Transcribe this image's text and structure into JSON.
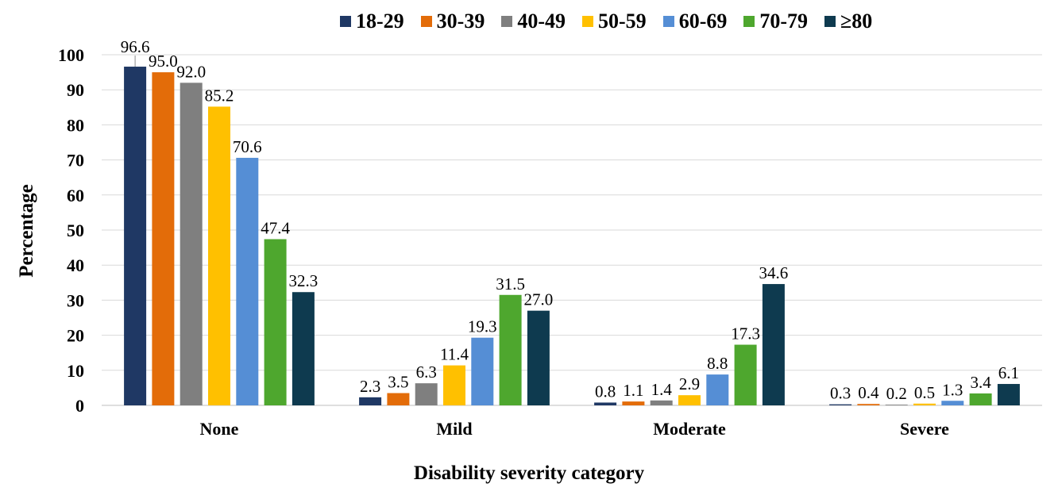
{
  "chart_data": {
    "type": "bar",
    "title": "",
    "xlabel": "Disability severity category",
    "ylabel": "Percentage",
    "ylim": [
      0,
      100
    ],
    "yticks": [
      "0",
      "10",
      "20",
      "30",
      "40",
      "50",
      "60",
      "70",
      "80",
      "90",
      "100"
    ],
    "grid": true,
    "legend_position": "top",
    "categories": [
      "None",
      "Mild",
      "Moderate",
      "Severe"
    ],
    "series": [
      {
        "name": "18-29",
        "color": "#1f3864",
        "values": [
          96.6,
          2.3,
          0.8,
          0.3
        ],
        "labels": [
          "96.6",
          "2.3",
          "0.8",
          "0.3"
        ]
      },
      {
        "name": "30-39",
        "color": "#e36c09",
        "values": [
          95.0,
          3.5,
          1.1,
          0.4
        ],
        "labels": [
          "95.0",
          "3.5",
          "1.1",
          "0.4"
        ]
      },
      {
        "name": "40-49",
        "color": "#7f7f7f",
        "values": [
          92.0,
          6.3,
          1.4,
          0.2
        ],
        "labels": [
          "92.0",
          "6.3",
          "1.4",
          "0.2"
        ]
      },
      {
        "name": "50-59",
        "color": "#ffc000",
        "values": [
          85.2,
          11.4,
          2.9,
          0.5
        ],
        "labels": [
          "85.2",
          "11.4",
          "2.9",
          "0.5"
        ]
      },
      {
        "name": "60-69",
        "color": "#558ed5",
        "values": [
          70.6,
          19.3,
          8.8,
          1.3
        ],
        "labels": [
          "70.6",
          "19.3",
          "8.8",
          "1.3"
        ]
      },
      {
        "name": "70-79",
        "color": "#4ea72e",
        "values": [
          47.4,
          31.5,
          17.3,
          3.4
        ],
        "labels": [
          "47.4",
          "31.5",
          "17.3",
          "3.4"
        ]
      },
      {
        "name": "≥80",
        "color": "#0e3a4f",
        "values": [
          32.3,
          27.0,
          34.6,
          6.1
        ],
        "labels": [
          "32.3",
          "27.0",
          "34.6",
          "6.1"
        ]
      }
    ]
  }
}
